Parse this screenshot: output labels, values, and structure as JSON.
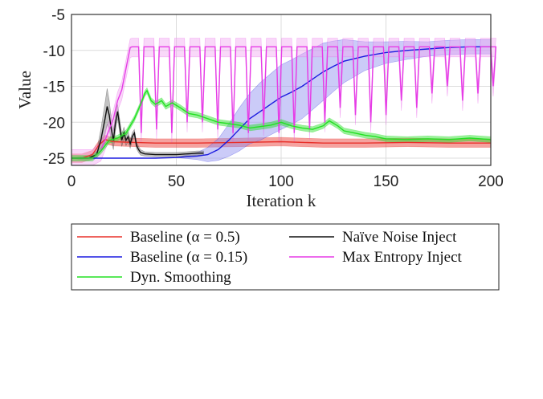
{
  "chart_data": {
    "type": "line",
    "xlabel": "Iteration k",
    "ylabel": "Value",
    "xlim": [
      0,
      200
    ],
    "ylim": [
      -26,
      -5
    ],
    "xticks": [
      "0",
      "50",
      "100",
      "150",
      "200"
    ],
    "yticks": [
      "-5",
      "-10",
      "-15",
      "-20",
      "-25"
    ],
    "grid": true,
    "legend_position": "below",
    "series": [
      {
        "name": "Baseline (α = 0.5)",
        "color": "#e8302a",
        "band": 0.6,
        "points": [
          [
            0,
            -25
          ],
          [
            5,
            -25
          ],
          [
            10,
            -24.5
          ],
          [
            13,
            -23.2
          ],
          [
            16,
            -22.4
          ],
          [
            20,
            -22.7
          ],
          [
            30,
            -22.8
          ],
          [
            40,
            -22.9
          ],
          [
            60,
            -22.9
          ],
          [
            80,
            -22.8
          ],
          [
            100,
            -22.7
          ],
          [
            120,
            -22.9
          ],
          [
            140,
            -22.9
          ],
          [
            160,
            -22.8
          ],
          [
            180,
            -22.9
          ],
          [
            200,
            -22.9
          ]
        ]
      },
      {
        "name": "Baseline (α = 0.15)",
        "color": "#1c1ce0",
        "band_fill": "#8c8cf0",
        "points": [
          [
            0,
            -25
          ],
          [
            10,
            -25
          ],
          [
            20,
            -25
          ],
          [
            30,
            -25
          ],
          [
            40,
            -25
          ],
          [
            50,
            -24.9
          ],
          [
            60,
            -24.7
          ],
          [
            65,
            -24.5
          ],
          [
            70,
            -23.8
          ],
          [
            75,
            -22.5
          ],
          [
            80,
            -21
          ],
          [
            85,
            -19.5
          ],
          [
            90,
            -18.5
          ],
          [
            95,
            -17.5
          ],
          [
            100,
            -16.5
          ],
          [
            105,
            -15.8
          ],
          [
            110,
            -15
          ],
          [
            115,
            -14
          ],
          [
            120,
            -13
          ],
          [
            125,
            -12.2
          ],
          [
            130,
            -11.5
          ],
          [
            140,
            -10.8
          ],
          [
            150,
            -10.3
          ],
          [
            160,
            -10
          ],
          [
            170,
            -9.8
          ],
          [
            180,
            -9.6
          ],
          [
            190,
            -9.5
          ],
          [
            200,
            -9.5
          ]
        ],
        "band_widths": [
          [
            0,
            0
          ],
          [
            55,
            0
          ],
          [
            60,
            0.5
          ],
          [
            70,
            1.5
          ],
          [
            80,
            3
          ],
          [
            90,
            4
          ],
          [
            100,
            4.5
          ],
          [
            110,
            4.5
          ],
          [
            120,
            4
          ],
          [
            130,
            3
          ],
          [
            140,
            2
          ],
          [
            150,
            1.5
          ],
          [
            170,
            1
          ],
          [
            200,
            1
          ]
        ]
      },
      {
        "name": "Naïve Noise Inject",
        "color": "#111111",
        "band_fill": "#7a7a7a",
        "points": [
          [
            0,
            -25
          ],
          [
            8,
            -25
          ],
          [
            12,
            -24.5
          ],
          [
            14,
            -22.5
          ],
          [
            16,
            -19.5
          ],
          [
            17,
            -17.8
          ],
          [
            18,
            -19
          ],
          [
            19,
            -21
          ],
          [
            20,
            -22.5
          ],
          [
            21,
            -20
          ],
          [
            22,
            -18.5
          ],
          [
            23,
            -20.5
          ],
          [
            24,
            -22.5
          ],
          [
            25,
            -21.5
          ],
          [
            26,
            -22.5
          ],
          [
            27,
            -22
          ],
          [
            28,
            -23
          ],
          [
            29,
            -22
          ],
          [
            30,
            -21.5
          ],
          [
            31,
            -23.2
          ],
          [
            32,
            -23.8
          ],
          [
            33,
            -24.2
          ],
          [
            35,
            -24.4
          ],
          [
            40,
            -24.5
          ],
          [
            50,
            -24.5
          ],
          [
            55,
            -24.4
          ],
          [
            60,
            -24.3
          ],
          [
            63,
            -24.3
          ]
        ],
        "band_widths": [
          [
            0,
            0
          ],
          [
            12,
            0.5
          ],
          [
            15,
            2
          ],
          [
            17,
            2.5
          ],
          [
            19,
            1.5
          ],
          [
            22,
            1
          ],
          [
            30,
            0.5
          ],
          [
            35,
            0.3
          ],
          [
            63,
            0.3
          ]
        ]
      },
      {
        "name": "Max Entropy Inject",
        "color": "#e63ce6",
        "band_fill": "#f2a8f2",
        "spikes": {
          "start": 28,
          "period": 7.3,
          "end": 200,
          "base": -9.5,
          "depths": [
            -21.5,
            -21,
            -21.5,
            -20,
            -20,
            -21,
            -21.5,
            -21.5,
            -20.5,
            -21.5,
            -21.5,
            -21,
            -20,
            -18,
            -19,
            -20,
            -19,
            -17,
            -18,
            -16,
            -15,
            -17,
            -16,
            -15
          ]
        },
        "points": [
          [
            0,
            -25
          ],
          [
            10,
            -25
          ],
          [
            14,
            -24
          ],
          [
            18,
            -21
          ],
          [
            20,
            -19.5
          ],
          [
            22,
            -17
          ],
          [
            24,
            -15.5
          ],
          [
            26,
            -12.5
          ],
          [
            28,
            -9.6
          ]
        ]
      },
      {
        "name": "Dyn. Smoothing",
        "color": "#22e022",
        "band": 0.4,
        "points": [
          [
            0,
            -25
          ],
          [
            10,
            -25
          ],
          [
            14,
            -24
          ],
          [
            18,
            -22.5
          ],
          [
            22,
            -22.2
          ],
          [
            26,
            -21.5
          ],
          [
            30,
            -19.5
          ],
          [
            33,
            -17.5
          ],
          [
            35,
            -16
          ],
          [
            36,
            -15.6
          ],
          [
            38,
            -17
          ],
          [
            40,
            -17.5
          ],
          [
            43,
            -17
          ],
          [
            45,
            -17.8
          ],
          [
            48,
            -17.3
          ],
          [
            52,
            -18
          ],
          [
            56,
            -18.8
          ],
          [
            60,
            -19
          ],
          [
            65,
            -19.5
          ],
          [
            70,
            -20
          ],
          [
            75,
            -20.2
          ],
          [
            80,
            -20.4
          ],
          [
            85,
            -20.8
          ],
          [
            90,
            -20.6
          ],
          [
            95,
            -20.4
          ],
          [
            100,
            -20
          ],
          [
            105,
            -20.5
          ],
          [
            110,
            -20.8
          ],
          [
            115,
            -21
          ],
          [
            120,
            -20.5
          ],
          [
            123,
            -19.8
          ],
          [
            127,
            -20.5
          ],
          [
            130,
            -21.2
          ],
          [
            135,
            -21.5
          ],
          [
            140,
            -21.8
          ],
          [
            145,
            -22
          ],
          [
            150,
            -22.3
          ],
          [
            160,
            -22.4
          ],
          [
            170,
            -22.3
          ],
          [
            180,
            -22.4
          ],
          [
            190,
            -22.2
          ],
          [
            200,
            -22.4
          ]
        ]
      }
    ],
    "legend": [
      {
        "label": "Baseline (α = 0.5)",
        "color": "#e8302a",
        "col": 0,
        "row": 0
      },
      {
        "label": "Baseline (α = 0.15)",
        "color": "#1c1ce0",
        "col": 0,
        "row": 1
      },
      {
        "label": "Dyn. Smoothing",
        "color": "#22e022",
        "col": 0,
        "row": 2
      },
      {
        "label": "Naïve Noise Inject",
        "color": "#111111",
        "col": 1,
        "row": 0
      },
      {
        "label": "Max Entropy Inject",
        "color": "#e63ce6",
        "col": 1,
        "row": 1
      }
    ]
  }
}
